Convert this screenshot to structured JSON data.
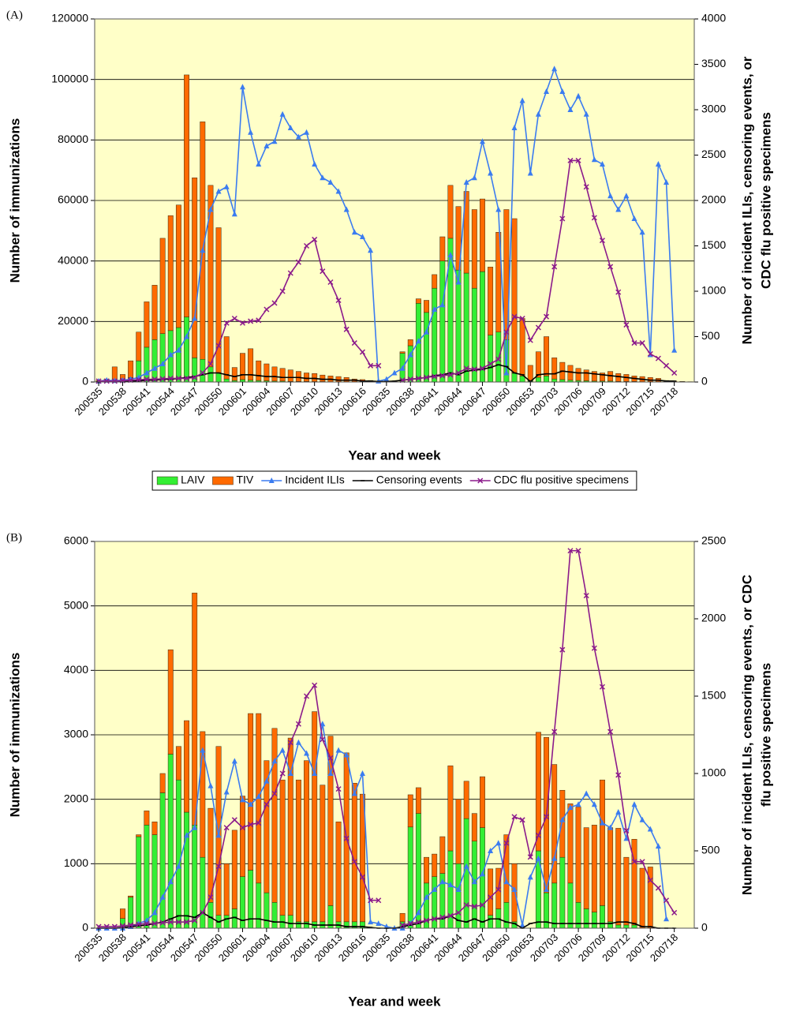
{
  "chart_data": [
    {
      "type": "bar_line",
      "panel_label": "(A)",
      "x_label": "Year and week",
      "y_label": "Number of immunizations",
      "y2_label": [
        "Number of incident ILIs, censoring events, or",
        "CDC flu positive specimens"
      ],
      "categories": [
        "200535",
        null,
        null,
        "200538",
        null,
        null,
        "200541",
        null,
        null,
        "200544",
        null,
        null,
        "200547",
        null,
        null,
        "200550",
        null,
        null,
        "200601",
        null,
        null,
        "200604",
        null,
        null,
        "200607",
        null,
        null,
        "200610",
        null,
        null,
        "200613",
        null,
        null,
        "200616",
        null,
        null,
        "200635",
        null,
        null,
        "200638",
        null,
        null,
        "200641",
        null,
        null,
        "200644",
        null,
        null,
        "200647",
        null,
        null,
        "200650",
        null,
        null,
        "200653",
        null,
        null,
        "200703",
        null,
        null,
        "200706",
        null,
        null,
        "200709",
        null,
        null,
        "200712",
        null,
        null,
        "200715",
        null,
        null,
        "200718",
        null,
        null
      ],
      "ylim": [
        0,
        120000
      ],
      "yticks": [
        0,
        20000,
        40000,
        60000,
        80000,
        100000,
        120000
      ],
      "y2lim": [
        0,
        4000
      ],
      "y2ticks": [
        0,
        500,
        1000,
        1500,
        2000,
        2500,
        3000,
        3500,
        4000
      ],
      "grid": true,
      "legend": "bottom",
      "background": "#ffffc8",
      "series": [
        {
          "name": "LAIV",
          "kind": "bar",
          "color": "#33ee33",
          "values": [
            200,
            400,
            800,
            600,
            1500,
            7000,
            11500,
            14000,
            16000,
            17000,
            18000,
            21500,
            8000,
            7500,
            5000,
            3000,
            1000,
            500,
            800,
            600,
            500,
            400,
            300,
            300,
            200,
            200,
            200,
            150,
            150,
            100,
            100,
            100,
            100,
            50,
            50,
            50,
            50,
            100,
            9500,
            12000,
            26000,
            23000,
            31000,
            40000,
            47500,
            37000,
            36000,
            31000,
            36500,
            15500,
            16500,
            14000,
            3000,
            2000,
            500,
            1500,
            2000,
            1000,
            800,
            600,
            500,
            400,
            300,
            300,
            300,
            200,
            200,
            200,
            100,
            100,
            100,
            50,
            50,
            50,
            0
          ]
        },
        {
          "name": "TIV",
          "kind": "bar",
          "color": "#ff6a00",
          "values": [
            300,
            600,
            4200,
            1900,
            5500,
            9500,
            15000,
            18000,
            31500,
            38000,
            40500,
            80000,
            59500,
            78500,
            60000,
            48000,
            14000,
            4300,
            8700,
            10400,
            6500,
            5600,
            4700,
            4200,
            3800,
            3300,
            2800,
            2650,
            2150,
            1900,
            1700,
            1400,
            900,
            750,
            450,
            250,
            150,
            200,
            500,
            2000,
            1500,
            4000,
            4500,
            8000,
            17500,
            21000,
            27000,
            26000,
            24000,
            22500,
            33000,
            43000,
            51000,
            19000,
            5000,
            8500,
            13000,
            7000,
            5700,
            4900,
            4000,
            3600,
            3200,
            2700,
            3200,
            2600,
            2300,
            1800,
            1700,
            1400,
            1100,
            450,
            250,
            150,
            100
          ]
        },
        {
          "name": "Incident ILIs",
          "kind": "line",
          "axis": "y2",
          "marker": "triangle",
          "color": "#3b7cf0",
          "values": [
            10,
            20,
            15,
            20,
            30,
            50,
            100,
            150,
            200,
            300,
            350,
            500,
            700,
            1450,
            1900,
            2100,
            2150,
            1850,
            3250,
            2750,
            2400,
            2600,
            2650,
            2950,
            2800,
            2700,
            2750,
            2400,
            2250,
            2200,
            2100,
            1900,
            1650,
            1600,
            1450,
            10,
            30,
            100,
            150,
            300,
            450,
            550,
            800,
            850,
            1400,
            1100,
            2200,
            2250,
            2650,
            2300,
            1900,
            100,
            2800,
            3100,
            2300,
            2950,
            3200,
            3450,
            3200,
            3000,
            3150,
            2950,
            2450,
            2400,
            2050,
            1900,
            2050,
            1800,
            1650,
            300,
            2400,
            2200,
            350,
            null,
            null
          ]
        },
        {
          "name": "Censoring events",
          "kind": "line",
          "axis": "y2",
          "marker": "dash",
          "color": "#000000",
          "values": [
            5,
            5,
            5,
            5,
            10,
            10,
            20,
            20,
            30,
            30,
            40,
            50,
            60,
            80,
            100,
            100,
            80,
            60,
            80,
            80,
            70,
            60,
            60,
            50,
            50,
            50,
            40,
            40,
            30,
            30,
            20,
            20,
            20,
            10,
            10,
            5,
            5,
            10,
            20,
            30,
            40,
            50,
            70,
            80,
            100,
            80,
            120,
            130,
            140,
            160,
            190,
            170,
            100,
            80,
            5,
            80,
            90,
            90,
            120,
            110,
            100,
            100,
            90,
            80,
            70,
            60,
            50,
            40,
            30,
            20,
            20,
            10,
            10,
            null,
            null
          ]
        },
        {
          "name": "CDC flu positive specimens",
          "kind": "line",
          "axis": "y2",
          "marker": "x",
          "color": "#8b1a8b",
          "values": [
            10,
            10,
            10,
            15,
            20,
            25,
            30,
            30,
            35,
            40,
            40,
            40,
            50,
            100,
            200,
            400,
            650,
            700,
            650,
            670,
            680,
            800,
            870,
            1000,
            1200,
            1320,
            1500,
            1570,
            1220,
            1100,
            900,
            580,
            430,
            330,
            180,
            180,
            null,
            null,
            20,
            30,
            40,
            50,
            60,
            70,
            80,
            100,
            150,
            140,
            150,
            200,
            250,
            550,
            720,
            700,
            460,
            600,
            720,
            1270,
            1800,
            2440,
            2440,
            2150,
            1810,
            1560,
            1270,
            990,
            630,
            430,
            430,
            310,
            260,
            180,
            100,
            null,
            null
          ]
        }
      ]
    },
    {
      "type": "bar_line",
      "panel_label": "(B)",
      "x_label": "Year and week",
      "y_label": "Number of immunizations",
      "y2_label": [
        "Number of incident ILIs, censoring events, or CDC",
        "flu positive specimens"
      ],
      "categories": [
        "200535",
        null,
        null,
        "200538",
        null,
        null,
        "200541",
        null,
        null,
        "200544",
        null,
        null,
        "200547",
        null,
        null,
        "200550",
        null,
        null,
        "200601",
        null,
        null,
        "200604",
        null,
        null,
        "200607",
        null,
        null,
        "200610",
        null,
        null,
        "200613",
        null,
        null,
        "200616",
        null,
        null,
        "200635",
        null,
        null,
        "200638",
        null,
        null,
        "200641",
        null,
        null,
        "200644",
        null,
        null,
        "200647",
        null,
        null,
        "200650",
        null,
        null,
        "200653",
        null,
        null,
        "200703",
        null,
        null,
        "200706",
        null,
        null,
        "200709",
        null,
        null,
        "200712",
        null,
        null,
        "200715",
        null,
        null,
        "200718",
        null,
        null
      ],
      "ylim": [
        0,
        6000
      ],
      "yticks": [
        0,
        1000,
        2000,
        3000,
        4000,
        5000,
        6000
      ],
      "y2lim": [
        0,
        2500
      ],
      "y2ticks": [
        0,
        500,
        1000,
        1500,
        2000,
        2500
      ],
      "grid": true,
      "background": "#ffffc8",
      "series": [
        {
          "name": "LAIV",
          "kind": "bar",
          "color": "#33ee33",
          "values": [
            0,
            0,
            0,
            150,
            480,
            1420,
            1600,
            1450,
            2100,
            2700,
            2300,
            1800,
            1600,
            1100,
            400,
            200,
            200,
            300,
            800,
            900,
            700,
            550,
            400,
            200,
            200,
            100,
            100,
            100,
            100,
            350,
            100,
            100,
            100,
            100,
            0,
            0,
            0,
            0,
            100,
            1570,
            1780,
            700,
            800,
            850,
            1200,
            1000,
            1700,
            1350,
            1560,
            200,
            300,
            400,
            100,
            0,
            0,
            1200,
            550,
            700,
            1100,
            700,
            400,
            300,
            250,
            350,
            100,
            50,
            50,
            50,
            0,
            0,
            0,
            0,
            0,
            0,
            0
          ]
        },
        {
          "name": "TIV",
          "kind": "bar",
          "color": "#ff6a00",
          "values": [
            0,
            0,
            0,
            150,
            20,
            30,
            220,
            200,
            300,
            1620,
            520,
            1420,
            3600,
            1950,
            1460,
            2620,
            800,
            1220,
            1250,
            2430,
            2630,
            2050,
            2700,
            2100,
            2750,
            2200,
            2500,
            3260,
            2120,
            2630,
            1550,
            2620,
            2150,
            1980,
            0,
            0,
            0,
            0,
            130,
            500,
            400,
            400,
            350,
            570,
            1320,
            1000,
            580,
            430,
            790,
            720,
            630,
            1050,
            900,
            0,
            0,
            1840,
            2410,
            1840,
            1040,
            1230,
            1480,
            1260,
            1350,
            1950,
            1460,
            1500,
            1050,
            1330,
            930,
            950,
            0,
            0,
            0,
            0,
            0
          ]
        },
        {
          "name": "Incident ILIs",
          "kind": "line",
          "axis": "y2",
          "marker": "triangle",
          "color": "#3b7cf0",
          "values": [
            0,
            0,
            0,
            0,
            10,
            30,
            50,
            100,
            200,
            300,
            400,
            600,
            650,
            1150,
            920,
            600,
            880,
            1080,
            830,
            800,
            850,
            950,
            1080,
            1150,
            1000,
            1200,
            1130,
            1000,
            1320,
            1000,
            1150,
            1120,
            870,
            1000,
            40,
            30,
            10,
            0,
            0,
            30,
            100,
            200,
            250,
            300,
            280,
            250,
            400,
            300,
            350,
            500,
            550,
            300,
            250,
            20,
            330,
            450,
            250,
            450,
            700,
            780,
            800,
            870,
            800,
            680,
            650,
            750,
            580,
            800,
            700,
            640,
            530,
            60,
            null,
            null,
            null
          ]
        },
        {
          "name": "Censoring events",
          "kind": "line",
          "axis": "y2",
          "marker": "dash",
          "color": "#000000",
          "values": [
            0,
            0,
            0,
            5,
            10,
            15,
            20,
            30,
            40,
            60,
            80,
            80,
            70,
            100,
            70,
            40,
            60,
            70,
            50,
            60,
            60,
            50,
            40,
            40,
            30,
            30,
            30,
            20,
            20,
            20,
            20,
            10,
            10,
            10,
            5,
            0,
            0,
            0,
            10,
            20,
            30,
            50,
            60,
            60,
            80,
            50,
            40,
            60,
            40,
            60,
            60,
            40,
            30,
            0,
            30,
            40,
            40,
            30,
            30,
            30,
            30,
            30,
            30,
            30,
            30,
            40,
            40,
            30,
            10,
            10,
            0,
            0,
            0,
            null,
            null
          ]
        },
        {
          "name": "CDC flu positive specimens",
          "kind": "line",
          "axis": "y2",
          "marker": "x",
          "color": "#8b1a8b",
          "values": [
            10,
            10,
            10,
            15,
            20,
            25,
            30,
            30,
            35,
            40,
            40,
            40,
            50,
            100,
            200,
            400,
            650,
            700,
            650,
            670,
            680,
            800,
            870,
            1000,
            1200,
            1320,
            1500,
            1570,
            1220,
            1100,
            900,
            580,
            430,
            330,
            180,
            180,
            null,
            null,
            20,
            30,
            40,
            50,
            60,
            70,
            80,
            100,
            150,
            140,
            150,
            200,
            250,
            550,
            720,
            700,
            460,
            600,
            720,
            1270,
            1800,
            2440,
            2440,
            2150,
            1810,
            1560,
            1270,
            990,
            630,
            430,
            430,
            310,
            260,
            180,
            100,
            null,
            null
          ]
        }
      ]
    }
  ]
}
